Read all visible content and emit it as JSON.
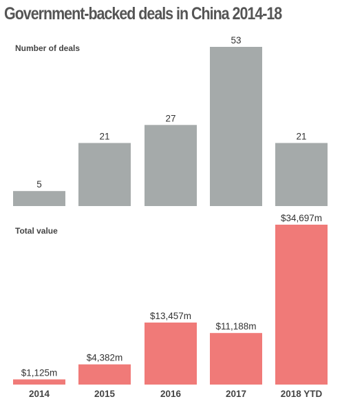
{
  "title": "Government-backed deals in China 2014-18",
  "colors": {
    "count_bar": "#a5aaaa",
    "value_bar": "#f07a78",
    "text": "#444444"
  },
  "chart_data": [
    {
      "type": "bar",
      "title": "Number of deals",
      "categories": [
        "2014",
        "2015",
        "2016",
        "2017",
        "2018 YTD"
      ],
      "values": [
        5,
        21,
        27,
        53,
        21
      ],
      "labels": [
        "5",
        "21",
        "27",
        "53",
        "21"
      ],
      "ylim": [
        0,
        53
      ]
    },
    {
      "type": "bar",
      "title": "Total value",
      "categories": [
        "2014",
        "2015",
        "2016",
        "2017",
        "2018 YTD"
      ],
      "values": [
        1125,
        4382,
        13457,
        11188,
        34697
      ],
      "labels": [
        "$1,125m",
        "$4,382m",
        "$13,457m",
        "$11,188m",
        "$34,697m"
      ],
      "ylim": [
        0,
        34697
      ]
    }
  ]
}
